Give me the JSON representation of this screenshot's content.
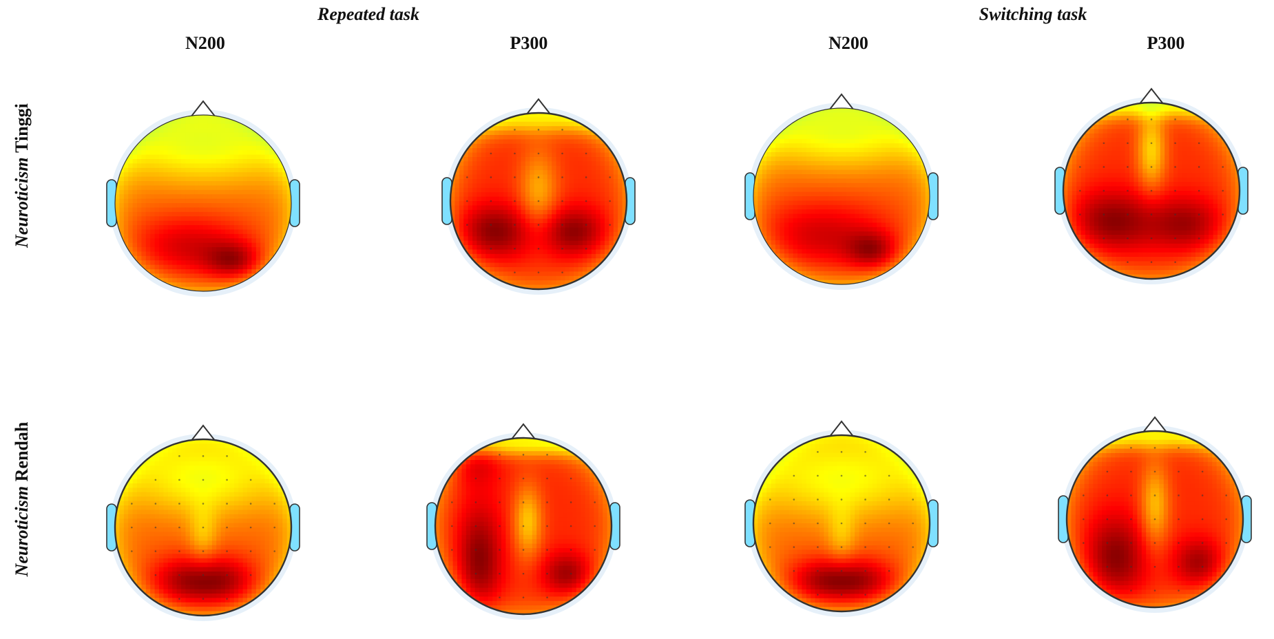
{
  "header": {
    "tasks": [
      "Repeated task",
      "Switching task"
    ],
    "components": [
      "N200",
      "P300",
      "N200",
      "P300"
    ]
  },
  "rows": [
    {
      "label_italic": "Neuroticism",
      "label_regular": "Tinggi"
    },
    {
      "label_italic": "Neuroticism",
      "label_regular": "Rendah"
    }
  ],
  "colors": {
    "scale": [
      "#00008f",
      "#0050ff",
      "#00c8ff",
      "#7fff7f",
      "#ffff00",
      "#ff7a00",
      "#ff0000",
      "#8b0000"
    ],
    "outline": "#333333",
    "halo": "#dbeaf7"
  },
  "maps": [
    {
      "name": "tinggi-repeated-n200",
      "sources": [
        [
          -0.15,
          0.5,
          0.95,
          0.5,
          0.26
        ],
        [
          0.35,
          0.66,
          1.0,
          0.22,
          0.15
        ],
        [
          0.0,
          -0.65,
          -1.0,
          0.75,
          0.32
        ]
      ],
      "contours": false
    },
    {
      "name": "tinggi-repeated-p300",
      "sources": [
        [
          -0.5,
          0.35,
          1.0,
          0.3,
          0.22
        ],
        [
          0.4,
          0.35,
          0.95,
          0.26,
          0.2
        ],
        [
          0.0,
          -0.1,
          -0.75,
          0.16,
          0.36
        ],
        [
          0.0,
          -0.92,
          -0.7,
          0.8,
          0.12
        ]
      ],
      "contours": true
    },
    {
      "name": "tinggi-switching-n200",
      "sources": [
        [
          -0.2,
          0.45,
          0.9,
          0.55,
          0.28
        ],
        [
          0.35,
          0.62,
          0.95,
          0.2,
          0.15
        ],
        [
          0.0,
          -0.7,
          -1.0,
          0.7,
          0.3
        ]
      ],
      "contours": false
    },
    {
      "name": "tinggi-switching-p300",
      "sources": [
        [
          -0.45,
          0.35,
          1.0,
          0.35,
          0.25
        ],
        [
          0.4,
          0.38,
          0.85,
          0.3,
          0.22
        ],
        [
          0.0,
          -0.45,
          -0.95,
          0.12,
          0.32
        ],
        [
          0.0,
          -0.95,
          -0.7,
          0.8,
          0.1
        ]
      ],
      "contours": true
    },
    {
      "name": "rendah-repeated-n200",
      "sources": [
        [
          -0.22,
          0.62,
          1.0,
          0.3,
          0.2
        ],
        [
          0.25,
          0.62,
          0.95,
          0.28,
          0.2
        ],
        [
          0.0,
          -0.55,
          -0.95,
          0.65,
          0.32
        ],
        [
          0.0,
          0.1,
          -0.5,
          0.12,
          0.25
        ]
      ],
      "contours": true
    },
    {
      "name": "rendah-repeated-p300",
      "sources": [
        [
          -0.5,
          0.4,
          1.0,
          0.18,
          0.45
        ],
        [
          0.5,
          0.55,
          0.9,
          0.2,
          0.18
        ],
        [
          0.05,
          -0.05,
          -0.9,
          0.12,
          0.3
        ],
        [
          0.0,
          -0.92,
          -0.8,
          0.8,
          0.1
        ],
        [
          -0.55,
          -0.75,
          0.6,
          0.2,
          0.2
        ]
      ],
      "contours": true
    },
    {
      "name": "rendah-switching-n200",
      "sources": [
        [
          -0.22,
          0.66,
          1.0,
          0.3,
          0.18
        ],
        [
          0.25,
          0.66,
          0.95,
          0.3,
          0.18
        ],
        [
          0.0,
          -0.5,
          -0.95,
          0.75,
          0.35
        ],
        [
          0.0,
          0.15,
          -0.45,
          0.12,
          0.25
        ]
      ],
      "contours": true
    },
    {
      "name": "rendah-switching-p300",
      "sources": [
        [
          -0.45,
          0.45,
          1.0,
          0.25,
          0.35
        ],
        [
          0.5,
          0.5,
          0.85,
          0.2,
          0.2
        ],
        [
          0.0,
          -0.15,
          -0.85,
          0.12,
          0.35
        ],
        [
          0.0,
          -0.92,
          -0.7,
          0.8,
          0.1
        ]
      ],
      "contours": true
    }
  ]
}
